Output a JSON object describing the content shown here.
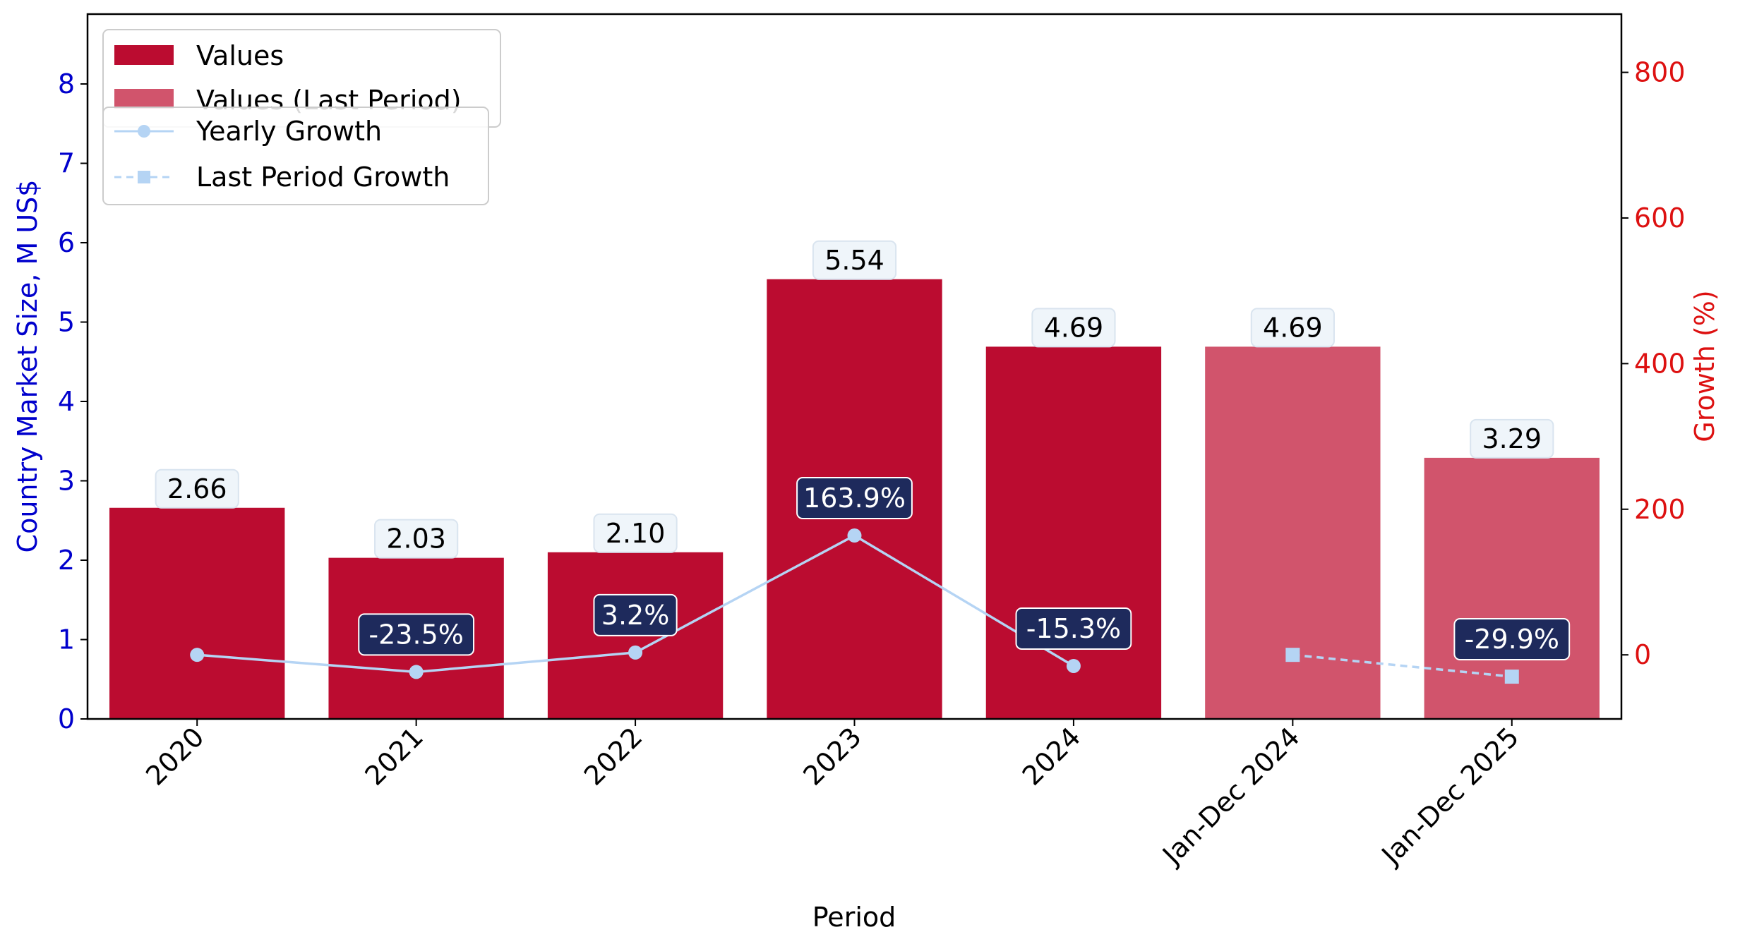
{
  "chart_data": {
    "type": "bar",
    "categories": [
      "2020",
      "2021",
      "2022",
      "2023",
      "2024",
      "Jan-Dec 2024",
      "Jan-Dec 2025"
    ],
    "series": [
      {
        "name": "Values",
        "type": "bar",
        "axis": "left",
        "color": "#bb0c30",
        "values": [
          2.66,
          2.03,
          2.1,
          5.54,
          4.69,
          null,
          null
        ],
        "labels": [
          "2.66",
          "2.03",
          "2.10",
          "5.54",
          "4.69",
          "",
          ""
        ]
      },
      {
        "name": "Values (Last Period)",
        "type": "bar",
        "axis": "left",
        "color": "#d1546c",
        "values": [
          null,
          null,
          null,
          null,
          null,
          4.69,
          3.29
        ],
        "labels": [
          "",
          "",
          "",
          "",
          "",
          "4.69",
          "3.29"
        ]
      },
      {
        "name": "Yearly Growth",
        "type": "line",
        "axis": "right",
        "color": "#b5d4f4",
        "marker": "circle",
        "values": [
          0,
          -23.5,
          3.2,
          163.9,
          -15.3,
          null,
          null
        ],
        "labels": [
          "",
          "-23.5%",
          "3.2%",
          "163.9%",
          "-15.3%",
          "",
          ""
        ]
      },
      {
        "name": "Last Period Growth",
        "type": "line",
        "axis": "right",
        "color": "#b5d4f4",
        "marker": "square",
        "dashed": true,
        "values": [
          null,
          null,
          null,
          null,
          null,
          0,
          -29.9
        ],
        "labels": [
          "",
          "",
          "",
          "",
          "",
          "",
          "-29.9%"
        ]
      }
    ],
    "xlabel": "Period",
    "ylabel": "Country Market Size, M US$",
    "y2label": "Growth (%)",
    "ylim": [
      0,
      8.88
    ],
    "y2lim": [
      -88,
      880
    ],
    "yticks": [
      0,
      1,
      2,
      3,
      4,
      5,
      6,
      7,
      8
    ],
    "y2ticks": [
      0,
      200,
      400,
      600,
      800
    ],
    "ylabel_color": "#0000cc",
    "y2label_color": "#dd1111",
    "growth_label_bg": "#1e2a5c",
    "value_label_bg": "#eef4fa",
    "grid": false,
    "legend_placement": "top-left"
  }
}
